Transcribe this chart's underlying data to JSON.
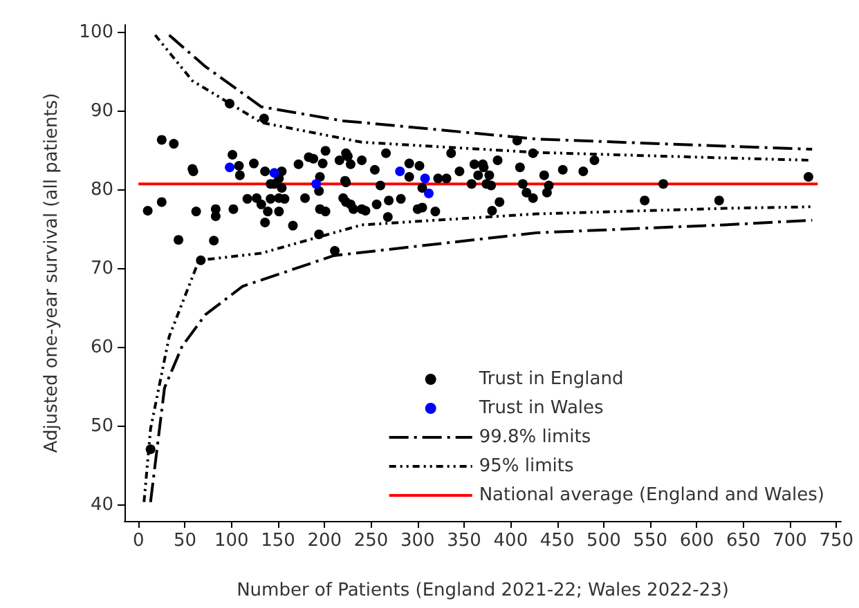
{
  "chart_data": {
    "type": "scatter",
    "xlabel": "Number of Patients (England 2021-22; Wales 2022-23)",
    "ylabel": "Adjusted one-year survival (all patients)",
    "xlim": [
      -15,
      755
    ],
    "xticks": [
      0,
      50,
      100,
      150,
      200,
      250,
      300,
      350,
      400,
      450,
      500,
      550,
      600,
      650,
      700,
      750
    ],
    "ylim": [
      38,
      101
    ],
    "yticks": [
      40,
      50,
      60,
      70,
      80,
      90,
      100
    ],
    "grid": false,
    "legend": "bottom right",
    "marker": "circle",
    "series": [
      {
        "name": "Trust in England",
        "color": "#000000",
        "x": [
          10,
          13,
          25,
          38,
          25,
          43,
          62,
          83,
          83,
          102,
          81,
          67,
          58,
          59,
          98,
          135,
          101,
          108,
          109,
          124,
          136,
          154,
          151,
          142,
          146,
          154,
          117,
          127,
          132,
          142,
          151,
          157,
          139,
          151,
          136,
          166,
          172,
          183,
          188,
          201,
          198,
          195,
          216,
          225,
          228,
          240,
          222,
          194,
          179,
          195,
          201,
          220,
          223,
          231,
          240,
          194,
          211,
          223,
          254,
          266,
          260,
          223,
          228,
          244,
          256,
          269,
          268,
          282,
          291,
          291,
          302,
          305,
          300,
          305,
          319,
          322,
          331,
          336,
          345,
          358,
          361,
          370,
          371,
          365,
          377,
          374,
          379,
          386,
          388,
          380,
          407,
          424,
          410,
          413,
          417,
          424,
          436,
          441,
          439,
          456,
          478,
          490,
          544,
          564,
          624,
          720
        ],
        "values": [
          77.4,
          47.1,
          86.4,
          85.9,
          78.5,
          73.7,
          77.3,
          77.6,
          76.7,
          77.6,
          73.6,
          71.1,
          82.7,
          82.4,
          91.0,
          89.1,
          84.5,
          83.1,
          81.9,
          83.4,
          82.4,
          82.4,
          81.5,
          80.8,
          80.8,
          80.3,
          78.9,
          79.0,
          78.2,
          78.9,
          79.0,
          78.9,
          77.3,
          77.3,
          75.9,
          75.5,
          83.3,
          84.2,
          84.0,
          85.0,
          83.4,
          81.7,
          83.8,
          84.3,
          83.3,
          83.8,
          81.2,
          79.9,
          79.0,
          77.6,
          77.3,
          79.0,
          78.5,
          77.6,
          77.6,
          74.4,
          72.3,
          84.7,
          82.6,
          84.7,
          80.6,
          81.0,
          78.2,
          77.4,
          78.2,
          78.7,
          76.6,
          78.9,
          83.4,
          81.7,
          83.1,
          80.3,
          77.6,
          77.8,
          77.3,
          81.5,
          81.5,
          84.7,
          82.4,
          80.8,
          83.3,
          83.3,
          82.9,
          81.9,
          81.9,
          80.8,
          80.6,
          83.8,
          78.5,
          77.4,
          86.3,
          84.7,
          82.9,
          80.8,
          79.7,
          79.0,
          81.9,
          80.6,
          79.7,
          82.6,
          82.4,
          83.8,
          78.7,
          80.8,
          78.7,
          81.7
        ]
      },
      {
        "name": "Trust in Wales",
        "color": "#0000ff",
        "x": [
          98,
          146,
          191,
          281,
          308,
          312
        ],
        "values": [
          82.9,
          82.2,
          80.8,
          82.4,
          81.5,
          79.6
        ]
      },
      {
        "name": "99.8% limits",
        "type": "line",
        "color": "#000000",
        "line_style": "dashed",
        "marker": "none",
        "x": [
          33,
          72,
          132,
          220,
          240,
          428,
          630,
          724
        ],
        "values": [
          99.7,
          95.7,
          90.6,
          88.8,
          88.6,
          86.5,
          85.6,
          85.2
        ]
      },
      {
        "name": "95% limits",
        "type": "line",
        "color": "#000000",
        "line_style": "dotted",
        "marker": "none",
        "x": [
          18,
          58,
          132,
          240,
          428,
          630,
          724
        ],
        "values": [
          99.7,
          93.9,
          88.6,
          86.1,
          84.8,
          84.1,
          83.8
        ]
      },
      {
        "type": "line",
        "color": "#000000",
        "line_style": "dashed",
        "marker": "none",
        "x": [
          13,
          28,
          47,
          72,
          112,
          210,
          428,
          630,
          724
        ],
        "values": [
          40.4,
          54.9,
          60.2,
          64.2,
          67.8,
          71.7,
          74.6,
          75.6,
          76.2
        ]
      },
      {
        "type": "line",
        "color": "#000000",
        "line_style": "dotted",
        "marker": "none",
        "x": [
          6,
          13,
          33,
          65,
          132,
          240,
          428,
          630,
          724
        ],
        "values": [
          40.4,
          49.7,
          61.4,
          71.1,
          72.0,
          75.6,
          77.0,
          77.7,
          77.9
        ]
      },
      {
        "name": "National average (England and Wales)",
        "type": "line",
        "color": "#ff0000",
        "line_style": "solid",
        "marker": "none",
        "x": [
          0,
          730
        ],
        "values": [
          80.8,
          80.8
        ]
      }
    ]
  }
}
